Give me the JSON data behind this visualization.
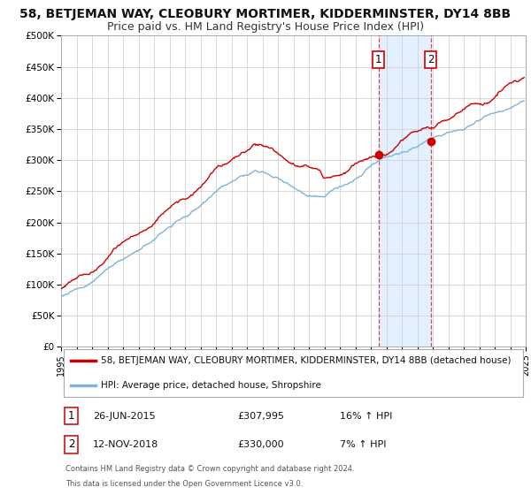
{
  "title": "58, BETJEMAN WAY, CLEOBURY MORTIMER, KIDDERMINSTER, DY14 8BB",
  "subtitle": "Price paid vs. HM Land Registry's House Price Index (HPI)",
  "ylim": [
    0,
    500000
  ],
  "yticks": [
    0,
    50000,
    100000,
    150000,
    200000,
    250000,
    300000,
    350000,
    400000,
    450000,
    500000
  ],
  "ytick_labels": [
    "£0",
    "£50K",
    "£100K",
    "£150K",
    "£200K",
    "£250K",
    "£300K",
    "£350K",
    "£400K",
    "£450K",
    "£500K"
  ],
  "xlim_start": 1995,
  "xlim_end": 2025,
  "xticks": [
    1995,
    1996,
    1997,
    1998,
    1999,
    2000,
    2001,
    2002,
    2003,
    2004,
    2005,
    2006,
    2007,
    2008,
    2009,
    2010,
    2011,
    2012,
    2013,
    2014,
    2015,
    2016,
    2017,
    2018,
    2019,
    2020,
    2021,
    2022,
    2023,
    2024,
    2025
  ],
  "red_line_color": "#cc0000",
  "blue_line_color": "#7fb3d9",
  "grid_color": "#cccccc",
  "background_color": "#ffffff",
  "shade_color": "#ddeeff",
  "marker1_x": 2015.49,
  "marker1_y": 307995,
  "marker2_x": 2018.87,
  "marker2_y": 330000,
  "vline1_x": 2015.49,
  "vline2_x": 2018.87,
  "legend_line1": "58, BETJEMAN WAY, CLEOBURY MORTIMER, KIDDERMINSTER, DY14 8BB (detached house)",
  "legend_line2": "HPI: Average price, detached house, Shropshire",
  "annotation1_label": "1",
  "annotation2_label": "2",
  "annotation1_date": "26-JUN-2015",
  "annotation1_price": "£307,995",
  "annotation1_hpi": "16% ↑ HPI",
  "annotation2_date": "12-NOV-2018",
  "annotation2_price": "£330,000",
  "annotation2_hpi": "7% ↑ HPI",
  "footer1": "Contains HM Land Registry data © Crown copyright and database right 2024.",
  "footer2": "This data is licensed under the Open Government Licence v3.0.",
  "title_fontsize": 10,
  "subtitle_fontsize": 9,
  "tick_fontsize": 7.5,
  "legend_fontsize": 7.5,
  "annotation_fontsize": 8
}
